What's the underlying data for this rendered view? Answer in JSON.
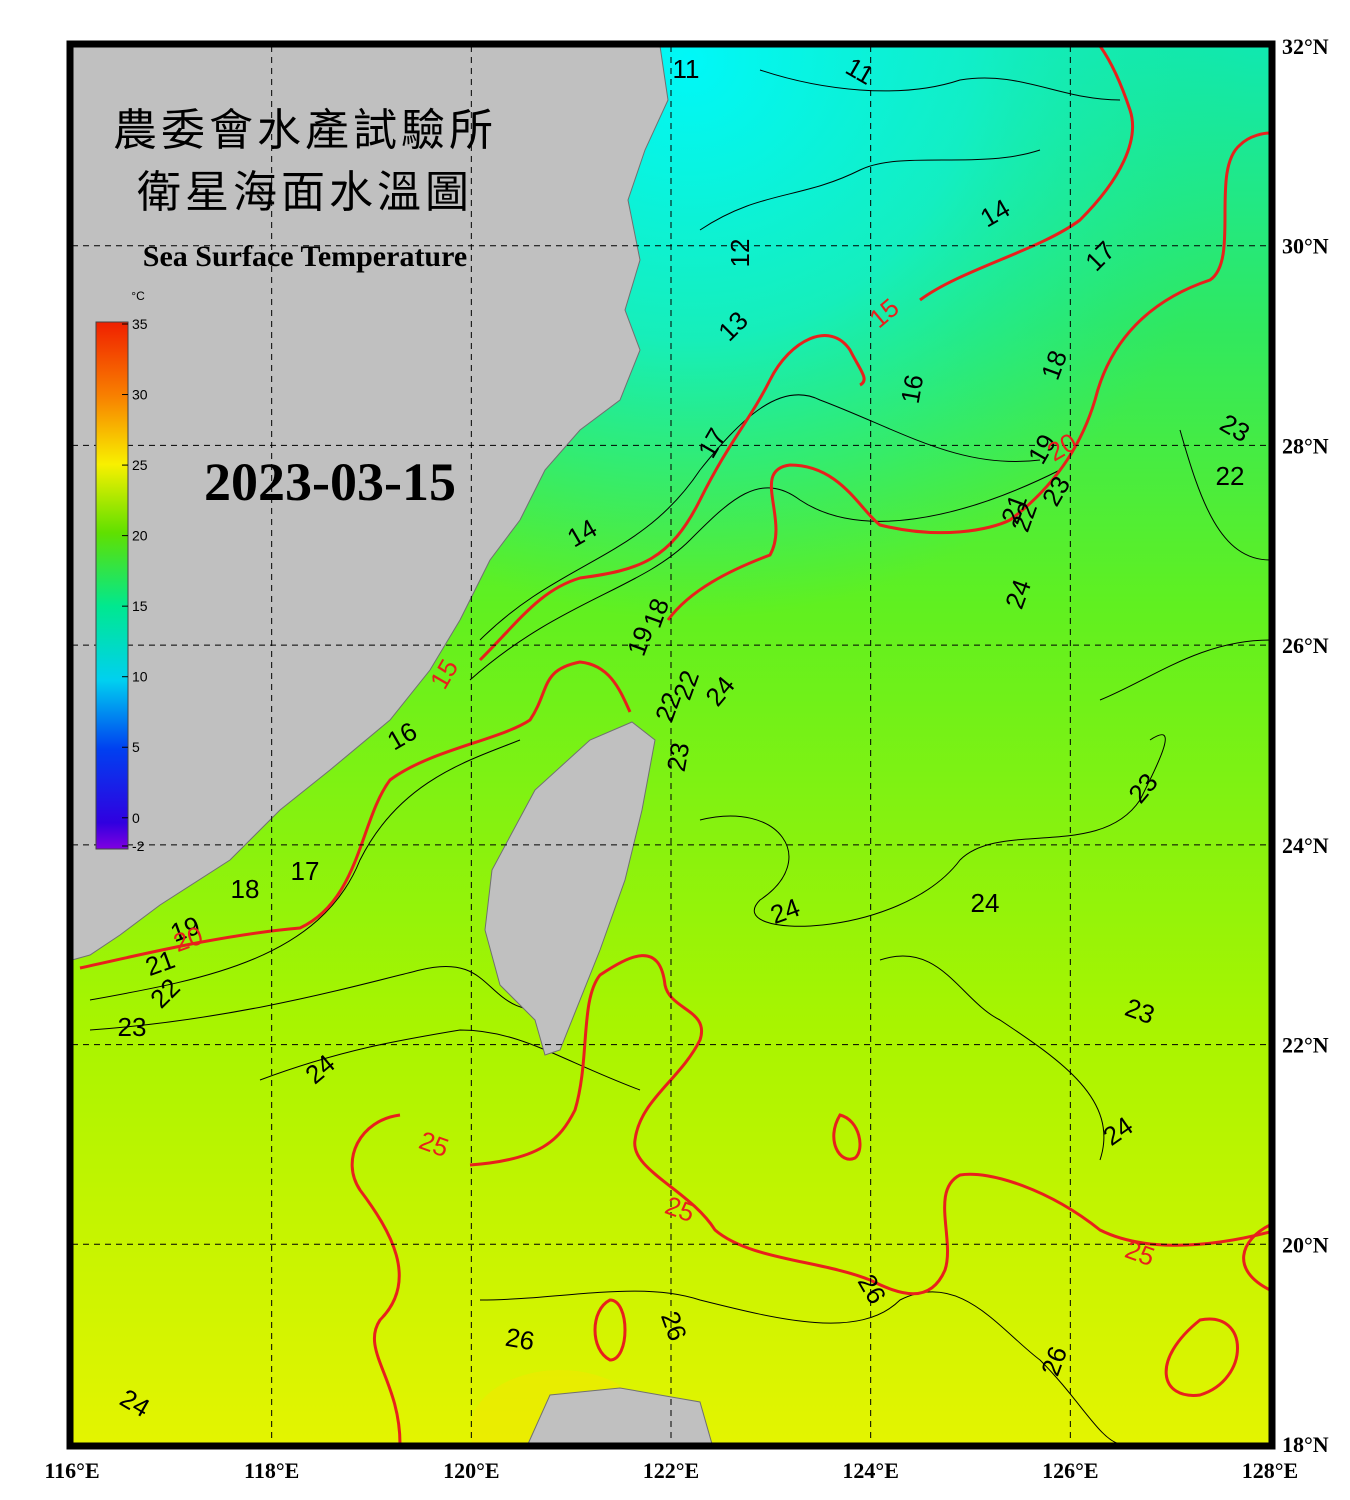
{
  "header": {
    "title_zh": [
      "農委會水產試驗所",
      "衛星海面水溫圖"
    ],
    "title_en": "Sea Surface Temperature",
    "date": "2023-03-15"
  },
  "colorbar": {
    "unit": "°C",
    "lim": [
      -2,
      35
    ],
    "ticks": [
      35,
      30,
      25,
      20,
      15,
      10,
      5,
      0,
      -2
    ]
  },
  "map": {
    "xlim": [
      116,
      128
    ],
    "ylim": [
      18,
      32
    ],
    "xticks": [
      {
        "value": 116,
        "label": "116°E"
      },
      {
        "value": 118,
        "label": "118°E"
      },
      {
        "value": 120,
        "label": "120°E"
      },
      {
        "value": 122,
        "label": "122°E"
      },
      {
        "value": 124,
        "label": "124°E"
      },
      {
        "value": 126,
        "label": "126°E"
      },
      {
        "value": 128,
        "label": "128°E"
      }
    ],
    "yticks": [
      {
        "value": 32,
        "label": "32°N"
      },
      {
        "value": 30,
        "label": "30°N"
      },
      {
        "value": 28,
        "label": "28°N"
      },
      {
        "value": 26,
        "label": "26°N"
      },
      {
        "value": 24,
        "label": "24°N"
      },
      {
        "value": 22,
        "label": "22°N"
      },
      {
        "value": 20,
        "label": "20°N"
      },
      {
        "value": 18,
        "label": "18°N"
      }
    ],
    "major_levels": [
      15,
      20,
      25
    ],
    "contour_labels": [
      11,
      11,
      14,
      17,
      12,
      13,
      16,
      18,
      17,
      19,
      23,
      22,
      21,
      22,
      23,
      14,
      24,
      19,
      18,
      24,
      22,
      22,
      23,
      16,
      23,
      17,
      18,
      19,
      24,
      24,
      21,
      22,
      23,
      23,
      24,
      24,
      26,
      26,
      26,
      26,
      24,
      15,
      20,
      15,
      20,
      25,
      25,
      25
    ]
  }
}
